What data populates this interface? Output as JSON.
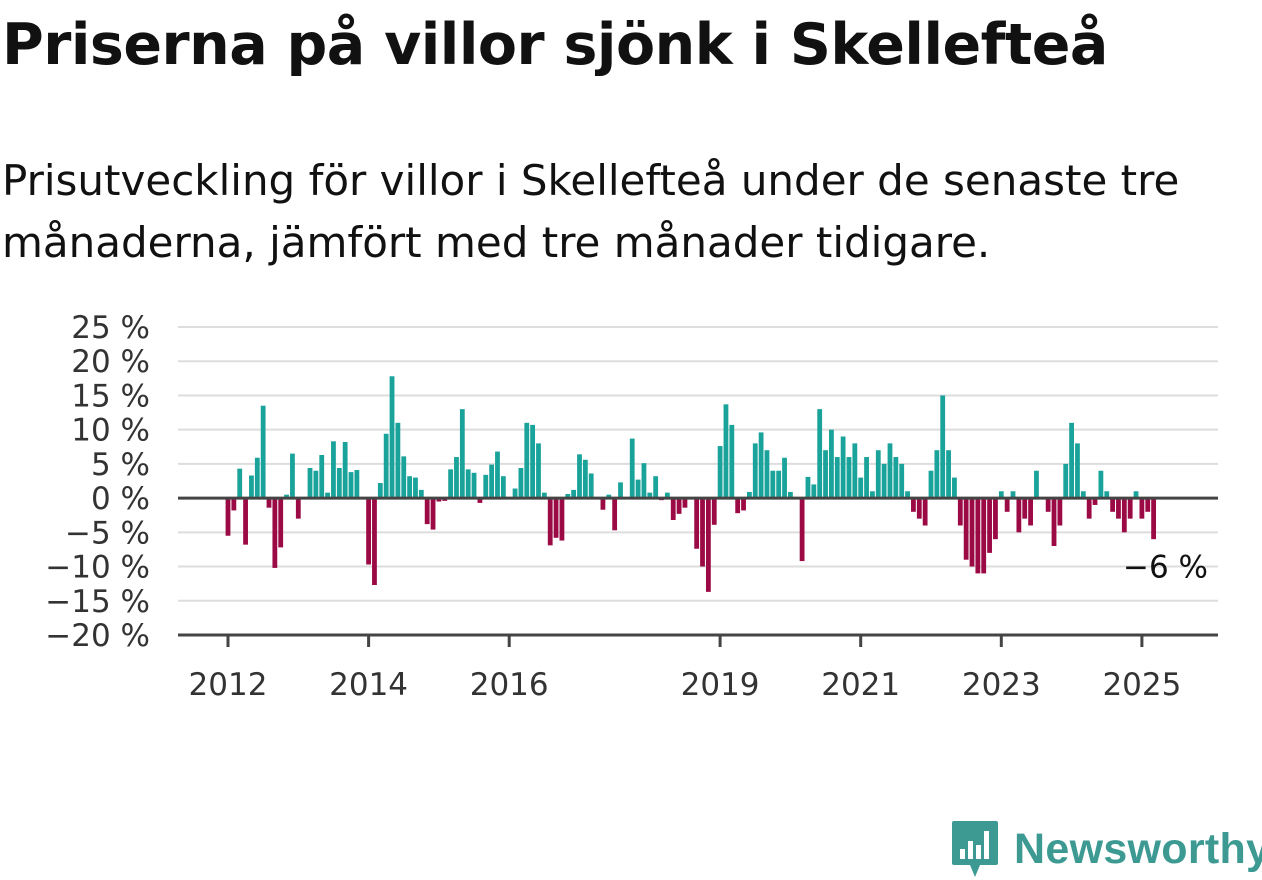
{
  "header": {
    "title": "Priserna på villor sjönk i Skellefteå",
    "subtitle": "Prisutveckling för villor i Skellefteå under de senaste tre månaderna, jämfört med tre månader tidigare."
  },
  "brand": {
    "name": "Newsworthy",
    "icon": "newsworthy-logo-icon",
    "color": "#3c9a93"
  },
  "colors": {
    "positive": "#1aa39a",
    "negative": "#9b0a45",
    "grid": "#dddddd",
    "axis": "#444444"
  },
  "chart_data": {
    "type": "bar",
    "title": "Priserna på villor sjönk i Skellefteå",
    "subtitle": "Prisutveckling för villor i Skellefteå under de senaste tre månaderna, jämfört med tre månader tidigare.",
    "unit": "%",
    "ylim": [
      -20,
      25
    ],
    "yticks": [
      25,
      20,
      15,
      10,
      5,
      0,
      -5,
      -10,
      -15,
      -20
    ],
    "ytick_labels": [
      "25 %",
      "20 %",
      "15 %",
      "10 %",
      "5 %",
      "0 %",
      "−5 %",
      "−10 %",
      "−15 %",
      "−20 %"
    ],
    "xticks": [
      {
        "label": "2012",
        "year": 2012
      },
      {
        "label": "2014",
        "year": 2014
      },
      {
        "label": "2016",
        "year": 2016
      },
      {
        "label": "2019",
        "year": 2019
      },
      {
        "label": "2021",
        "year": 2021
      },
      {
        "label": "2023",
        "year": 2023
      },
      {
        "label": "2025",
        "year": 2025
      }
    ],
    "grid": true,
    "start": "2012-01",
    "end_label": "−6 %",
    "series": [
      {
        "values": [
          -5.5,
          -1.8,
          4.3,
          -6.8,
          3.3,
          5.9,
          13.5,
          -1.4,
          -10.2,
          -7.2,
          0.5,
          6.5,
          -3.0,
          0.0,
          4.4,
          4.0,
          6.3,
          0.8,
          8.3,
          4.4,
          8.2,
          3.8,
          4.1,
          0.0,
          -9.7,
          -12.7,
          2.2,
          9.4,
          17.8,
          11.0,
          6.1,
          3.2,
          3.0,
          1.2,
          -3.8,
          -4.6,
          -0.5,
          -0.4,
          4.2,
          6.0,
          13.0,
          4.2,
          3.7,
          -0.7,
          3.4,
          4.9,
          6.8,
          3.2,
          0.0,
          1.4,
          4.4,
          11.0,
          10.7,
          8.0,
          0.8,
          -6.9,
          -5.8,
          -6.2,
          0.6,
          1.2,
          6.4,
          5.6,
          3.6,
          0.0,
          -1.7,
          0.5,
          -4.7,
          2.3,
          0.0,
          8.7,
          2.7,
          5.1,
          0.8,
          3.2,
          -0.3,
          0.8,
          -3.2,
          -2.3,
          -1.4,
          0.0,
          -7.4,
          -10.0,
          -13.7,
          -3.9,
          7.6,
          13.7,
          10.7,
          -2.2,
          -1.8,
          0.9,
          8.0,
          9.6,
          7.0,
          4.0,
          4.0,
          5.9,
          0.9,
          0.0,
          -9.2,
          3.1,
          2.0,
          13.0,
          7.0,
          10.0,
          6.0,
          9.0,
          6.0,
          8.0,
          3.0,
          6.0,
          1.0,
          7.0,
          5.0,
          8.0,
          6.0,
          5.0,
          1.0,
          -2.0,
          -3.0,
          -4.0,
          4.0,
          7.0,
          15.0,
          7.0,
          3.0,
          -4.0,
          -9.0,
          -10.0,
          -11.0,
          -11.0,
          -8.0,
          -6.0,
          1.0,
          -2.0,
          1.0,
          -5.0,
          -3.0,
          -4.0,
          4.0,
          0.0,
          -2.0,
          -7.0,
          -4.0,
          5.0,
          11.0,
          8.0,
          1.0,
          -3.0,
          -1.0,
          4.0,
          1.0,
          -2.0,
          -3.0,
          -5.0,
          -3.0,
          1.0,
          -3.0,
          -2.0,
          -6.0
        ]
      }
    ]
  }
}
